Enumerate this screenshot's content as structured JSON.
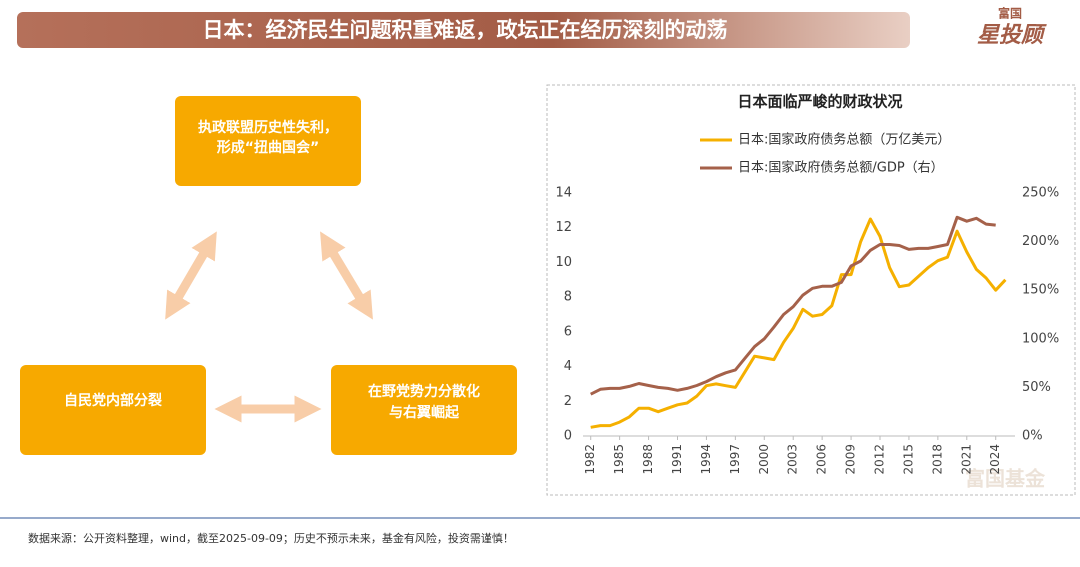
{
  "header": {
    "title": "日本：经济民生问题积重难返，政坛正在经历深刻的动荡",
    "logo_top": "富国",
    "logo_main": "星投顾"
  },
  "nodes": [
    {
      "lines": [
        "执政联盟历史性失利，",
        "形成“扭曲国会”"
      ]
    },
    {
      "lines": [
        "自民党内部分裂"
      ]
    },
    {
      "lines": [
        "在野党势力分散化",
        "与右翼崛起"
      ]
    }
  ],
  "watermark": "富国基金",
  "footer": "数据来源：公开资料整理，wind，截至2025-09-09；历史不预示未来，基金有风险，投资需谨慎！",
  "chart_data": {
    "type": "line",
    "title": "日本面临严峻的财政状况",
    "x": [
      1982,
      1983,
      1984,
      1985,
      1986,
      1987,
      1988,
      1989,
      1990,
      1991,
      1992,
      1993,
      1994,
      1995,
      1996,
      1997,
      1998,
      1999,
      2000,
      2001,
      2002,
      2003,
      2004,
      2005,
      2006,
      2007,
      2008,
      2009,
      2010,
      2011,
      2012,
      2013,
      2014,
      2015,
      2016,
      2017,
      2018,
      2019,
      2020,
      2021,
      2022,
      2023,
      2024,
      2025
    ],
    "xlim": [
      1981.2,
      2026
    ],
    "xticks": [
      1982,
      1985,
      1988,
      1991,
      1994,
      1997,
      2000,
      2003,
      2006,
      2009,
      2012,
      2015,
      2018,
      2021,
      2024
    ],
    "ylim": [
      0,
      14
    ],
    "yticks": [
      0,
      2,
      4,
      6,
      8,
      10,
      12,
      14
    ],
    "y2lim": [
      0,
      250
    ],
    "y2ticks": [
      {
        "value": 0,
        "label": "0%"
      },
      {
        "value": 50,
        "label": "50%"
      },
      {
        "value": 100,
        "label": "100%"
      },
      {
        "value": 150,
        "label": "150%"
      },
      {
        "value": 200,
        "label": "200%"
      },
      {
        "value": 250,
        "label": "250%"
      }
    ],
    "series": [
      {
        "name": "日本:国家政府债务总额（万亿美元）",
        "color": "#f5b000",
        "values": [
          0.5,
          0.6,
          0.6,
          0.8,
          1.1,
          1.6,
          1.6,
          1.4,
          1.6,
          1.8,
          1.9,
          2.3,
          2.9,
          3.0,
          2.9,
          2.8,
          3.7,
          4.6,
          4.5,
          4.4,
          5.4,
          6.2,
          7.3,
          6.9,
          7.0,
          7.5,
          9.3,
          9.3,
          11.2,
          12.5,
          11.5,
          9.7,
          8.6,
          8.7,
          9.2,
          9.7,
          10.1,
          10.3,
          11.8,
          10.6,
          9.6,
          9.1,
          8.4,
          9.0
        ]
      },
      {
        "name": "日本:国家政府债务总额/GDP（右）",
        "color": "#a5614a",
        "axis": "y2",
        "values": [
          43,
          48,
          49,
          49,
          51,
          54,
          52,
          50,
          49,
          47,
          49,
          52,
          56,
          61,
          65,
          68,
          80,
          92,
          100,
          112,
          125,
          133,
          145,
          152,
          154,
          154,
          158,
          175,
          180,
          191,
          197,
          197,
          196,
          192,
          193,
          193,
          195,
          197,
          225,
          221,
          224,
          218,
          217,
          null
        ]
      }
    ]
  }
}
